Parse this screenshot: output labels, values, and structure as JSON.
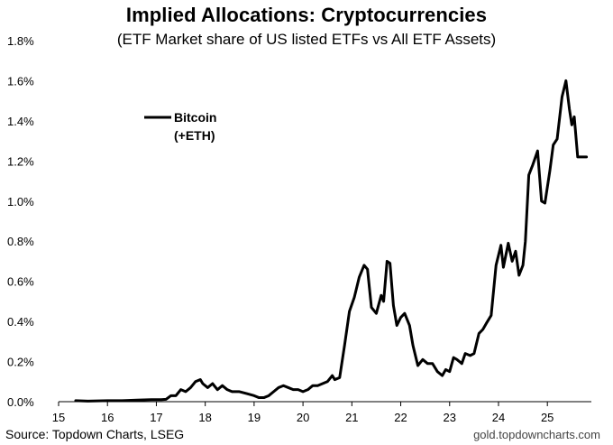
{
  "title": "Implied Allocations: Cryptocurrencies",
  "subtitle": "(ETF Market share of US listed ETFs vs All ETF Assets)",
  "footer": {
    "source": "Source: Topdown Charts, LSEG",
    "website": "gold.topdowncharts.com"
  },
  "colors": {
    "line": "#000000",
    "axis": "#000000",
    "background": "#ffffff"
  },
  "chart_data": {
    "type": "line",
    "title": "Implied Allocations: Cryptocurrencies",
    "subtitle": "(ETF Market share of US listed ETFs vs All ETF Assets)",
    "xlabel": "",
    "ylabel": "",
    "xlim": [
      15,
      25.9
    ],
    "ylim": [
      0,
      1.8
    ],
    "x_ticks": [
      15,
      16,
      17,
      18,
      19,
      20,
      21,
      22,
      23,
      24,
      25
    ],
    "x_tick_labels": [
      "15",
      "16",
      "17",
      "18",
      "19",
      "20",
      "21",
      "22",
      "23",
      "24",
      "25"
    ],
    "y_ticks": [
      0,
      0.2,
      0.4,
      0.6,
      0.8,
      1.0,
      1.2,
      1.4,
      1.6,
      1.8
    ],
    "y_tick_labels": [
      "0.0%",
      "0.2%",
      "0.4%",
      "0.6%",
      "0.8%",
      "1.0%",
      "1.2%",
      "1.4%",
      "1.6%",
      "1.8%"
    ],
    "grid": false,
    "legend_position": "top-left",
    "series": [
      {
        "name": "Bitcoin\n(+ETH)",
        "legend_lines": [
          "Bitcoin",
          "(+ETH)"
        ],
        "color": "#000000",
        "x": [
          15.35,
          15.6,
          15.8,
          16.0,
          16.3,
          16.6,
          16.9,
          17.1,
          17.2,
          17.3,
          17.4,
          17.5,
          17.6,
          17.7,
          17.8,
          17.9,
          17.95,
          18.05,
          18.15,
          18.25,
          18.35,
          18.45,
          18.55,
          18.7,
          18.85,
          19.0,
          19.1,
          19.2,
          19.3,
          19.4,
          19.5,
          19.6,
          19.7,
          19.8,
          19.9,
          20.0,
          20.1,
          20.2,
          20.3,
          20.4,
          20.5,
          20.6,
          20.65,
          20.75,
          20.85,
          20.95,
          21.05,
          21.15,
          21.25,
          21.32,
          21.4,
          21.5,
          21.6,
          21.65,
          21.72,
          21.78,
          21.85,
          21.92,
          22.0,
          22.08,
          22.18,
          22.25,
          22.35,
          22.45,
          22.55,
          22.65,
          22.75,
          22.85,
          22.92,
          23.0,
          23.08,
          23.15,
          23.25,
          23.32,
          23.42,
          23.5,
          23.6,
          23.68,
          23.75,
          23.85,
          23.95,
          24.05,
          24.1,
          24.2,
          24.28,
          24.35,
          24.42,
          24.5,
          24.55,
          24.62,
          24.7,
          24.8,
          24.88,
          24.95,
          25.05,
          25.12,
          25.2,
          25.3,
          25.38,
          25.45,
          25.5,
          25.55,
          25.62,
          25.7,
          25.8
        ],
        "values": [
          0.005,
          0.003,
          0.004,
          0.005,
          0.005,
          0.008,
          0.01,
          0.01,
          0.012,
          0.03,
          0.03,
          0.06,
          0.05,
          0.07,
          0.1,
          0.11,
          0.09,
          0.07,
          0.09,
          0.06,
          0.08,
          0.06,
          0.05,
          0.05,
          0.04,
          0.03,
          0.02,
          0.02,
          0.03,
          0.05,
          0.07,
          0.08,
          0.07,
          0.06,
          0.06,
          0.05,
          0.06,
          0.08,
          0.08,
          0.09,
          0.1,
          0.13,
          0.11,
          0.12,
          0.28,
          0.45,
          0.52,
          0.62,
          0.68,
          0.66,
          0.47,
          0.44,
          0.53,
          0.5,
          0.7,
          0.69,
          0.48,
          0.38,
          0.42,
          0.44,
          0.38,
          0.28,
          0.18,
          0.21,
          0.19,
          0.19,
          0.15,
          0.13,
          0.16,
          0.15,
          0.22,
          0.21,
          0.19,
          0.24,
          0.23,
          0.24,
          0.34,
          0.36,
          0.39,
          0.43,
          0.68,
          0.78,
          0.67,
          0.79,
          0.7,
          0.75,
          0.63,
          0.68,
          0.8,
          1.13,
          1.18,
          1.25,
          1.0,
          0.99,
          1.15,
          1.28,
          1.31,
          1.52,
          1.6,
          1.46,
          1.38,
          1.42,
          1.22,
          1.22,
          1.22
        ]
      }
    ]
  }
}
